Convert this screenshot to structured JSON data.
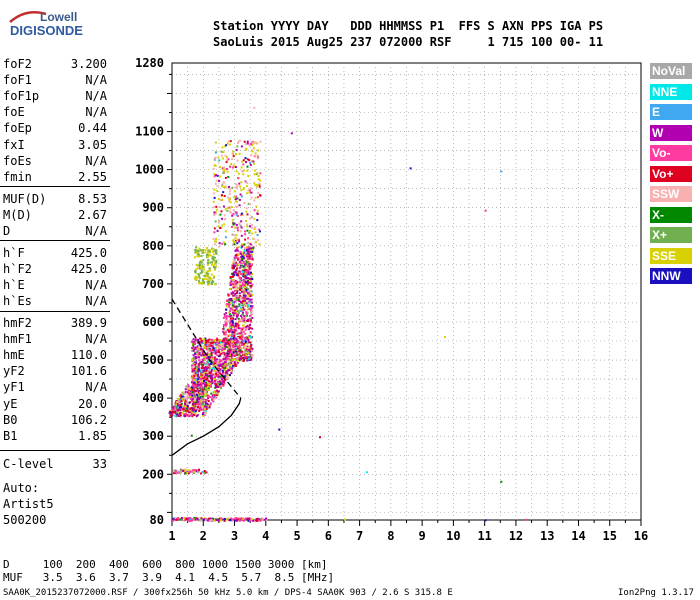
{
  "header": {
    "line1": "Station YYYY DAY   DDD HHMMSS P1  FFS S AXN PPS IGA PS",
    "line2": "SaoLuis 2015 Aug25 237 072000 RSF     1 715 100 00- 11"
  },
  "logo": {
    "top": "Lowell",
    "bottom": "DIGISONDE"
  },
  "params_group1": [
    {
      "k": "foF2",
      "v": "3.200"
    },
    {
      "k": "foF1",
      "v": "N/A"
    },
    {
      "k": "foF1p",
      "v": "N/A"
    },
    {
      "k": "foE",
      "v": "N/A"
    },
    {
      "k": "foEp",
      "v": "0.44"
    },
    {
      "k": "fxI",
      "v": "3.05"
    },
    {
      "k": "foEs",
      "v": "N/A"
    },
    {
      "k": "fmin",
      "v": "2.55"
    }
  ],
  "params_group2": [
    {
      "k": "MUF(D)",
      "v": "8.53"
    },
    {
      "k": "M(D)",
      "v": "2.67"
    },
    {
      "k": "D",
      "v": "N/A"
    }
  ],
  "params_group3": [
    {
      "k": "h`F",
      "v": "425.0"
    },
    {
      "k": "h`F2",
      "v": "425.0"
    },
    {
      "k": "h`E",
      "v": "N/A"
    },
    {
      "k": "h`Es",
      "v": "N/A"
    }
  ],
  "params_group4": [
    {
      "k": "hmF2",
      "v": "389.9"
    },
    {
      "k": "hmF1",
      "v": "N/A"
    },
    {
      "k": "hmE",
      "v": "110.0"
    },
    {
      "k": "yF2",
      "v": "101.6"
    },
    {
      "k": "yF1",
      "v": "N/A"
    },
    {
      "k": "yE",
      "v": "20.0"
    },
    {
      "k": "B0",
      "v": "106.2"
    },
    {
      "k": "B1",
      "v": "1.85"
    }
  ],
  "clevel": {
    "k": "C-level",
    "v": "33"
  },
  "auto": [
    "Auto:",
    "Artist5",
    "500200"
  ],
  "legend": [
    {
      "label": "NoVal",
      "color": "#a8a8a8"
    },
    {
      "label": "NNE",
      "color": "#00e8e8"
    },
    {
      "label": "E",
      "color": "#40a8f0"
    },
    {
      "label": "W",
      "color": "#b000b0"
    },
    {
      "label": "Vo-",
      "color": "#ff3aa0"
    },
    {
      "label": "Vo+",
      "color": "#e00020"
    },
    {
      "label": "SSW",
      "color": "#f8b0b0"
    },
    {
      "label": "X-",
      "color": "#008800"
    },
    {
      "label": "X+",
      "color": "#70b050"
    },
    {
      "label": "SSE",
      "color": "#d8d000"
    },
    {
      "label": "NNW",
      "color": "#1a10c0"
    }
  ],
  "footer_table": {
    "row1": "D     100  200  400  600  800 1000 1500 3000 [km]",
    "row2": "MUF   3.5  3.6  3.7  3.9  4.1  4.5  5.7  8.5 [MHz]"
  },
  "footer_left": "SAA0K_2015237072000.RSF / 300fx256h 50 kHz 5.0 km / DPS-4 SAA0K 903 / 2.6 S 315.8 E",
  "footer_right": "Ion2Png 1.3.17",
  "chart_data": {
    "type": "scatter",
    "xlim": [
      1,
      16
    ],
    "ylim": [
      80,
      1280
    ],
    "x_ticks": [
      1,
      2,
      3,
      4,
      5,
      6,
      7,
      8,
      9,
      10,
      11,
      12,
      13,
      14,
      15,
      16
    ],
    "y_ticks": [
      80,
      200,
      300,
      400,
      500,
      600,
      700,
      800,
      900,
      1000,
      1100,
      1280
    ],
    "grid": true,
    "profile_solid": [
      [
        1.0,
        250
      ],
      [
        1.5,
        280
      ],
      [
        2.0,
        300
      ],
      [
        2.5,
        325
      ],
      [
        2.9,
        355
      ],
      [
        3.15,
        385
      ],
      [
        3.2,
        400
      ]
    ],
    "profile_dashed": [
      [
        1.0,
        660
      ],
      [
        1.3,
        620
      ],
      [
        1.6,
        580
      ],
      [
        1.9,
        540
      ],
      [
        2.2,
        500
      ],
      [
        2.5,
        470
      ],
      [
        2.8,
        440
      ],
      [
        3.0,
        420
      ],
      [
        3.2,
        400
      ]
    ],
    "echo_clusters": [
      {
        "x": [
          1.6,
          3.2
        ],
        "y": [
          355,
          560
        ],
        "n": 1400
      },
      {
        "x": [
          2.6,
          3.55
        ],
        "y": [
          500,
          800
        ],
        "n": 900
      },
      {
        "x": [
          2.3,
          3.8
        ],
        "y": [
          800,
          1080
        ],
        "n": 350
      },
      {
        "x": [
          1.7,
          2.4
        ],
        "y": [
          700,
          800
        ],
        "n": 160
      },
      {
        "x": [
          1.0,
          4.0
        ],
        "y": [
          80,
          88
        ],
        "n": 160
      },
      {
        "x": [
          1.0,
          2.1
        ],
        "y": [
          205,
          215
        ],
        "n": 60
      }
    ],
    "isolated_points": [
      {
        "x": 4.8,
        "y": 1098
      },
      {
        "x": 8.6,
        "y": 1006
      },
      {
        "x": 11.5,
        "y": 998
      },
      {
        "x": 11.0,
        "y": 895
      },
      {
        "x": 9.7,
        "y": 563
      },
      {
        "x": 4.4,
        "y": 320
      },
      {
        "x": 5.7,
        "y": 300
      },
      {
        "x": 7.2,
        "y": 208
      },
      {
        "x": 11.5,
        "y": 183
      },
      {
        "x": 11.0,
        "y": 82
      },
      {
        "x": 12.3,
        "y": 83
      },
      {
        "x": 6.5,
        "y": 84
      },
      {
        "x": 1.6,
        "y": 304
      },
      {
        "x": 3.6,
        "y": 1165
      }
    ]
  }
}
